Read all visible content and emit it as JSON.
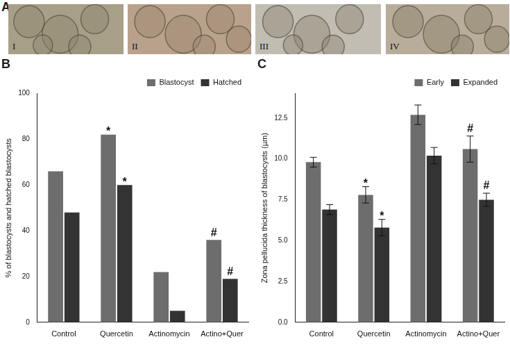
{
  "panel_a": {
    "label": "A",
    "image_labels": [
      "I",
      "II",
      "III",
      "IV"
    ]
  },
  "chart_data": [
    {
      "type": "bar",
      "title": "B",
      "categories": [
        "Control",
        "Quercetin",
        "Actinomycin",
        "Actino+Quer"
      ],
      "series": [
        {
          "name": "Blastocyst",
          "color": "#6d6d6d",
          "values": [
            66,
            82,
            22,
            36
          ]
        },
        {
          "name": "Hatched",
          "color": "#333333",
          "values": [
            48,
            60,
            5,
            19
          ]
        }
      ],
      "y_label": "% of blastocysts and hatched blastocysts",
      "ylim": [
        0,
        100
      ],
      "yticks": [
        0,
        20,
        40,
        60,
        80,
        100
      ],
      "grid": false,
      "legend": "upper right",
      "annotations": [
        {
          "text": "*",
          "category": "Quercetin",
          "series": "Blastocyst"
        },
        {
          "text": "*",
          "category": "Quercetin",
          "series": "Hatched"
        },
        {
          "text": "#",
          "category": "Actino+Quer",
          "series": "Blastocyst"
        },
        {
          "text": "#",
          "category": "Actino+Quer",
          "series": "Hatched"
        }
      ]
    },
    {
      "type": "bar",
      "title": "C",
      "categories": [
        "Control",
        "Quercetin",
        "Actinomycin",
        "Actino+Quer"
      ],
      "series": [
        {
          "name": "Early",
          "color": "#6d6d6d",
          "values": [
            9.8,
            7.8,
            12.7,
            10.6
          ],
          "errors": [
            0.3,
            0.5,
            0.6,
            0.8
          ]
        },
        {
          "name": "Expanded",
          "color": "#333333",
          "values": [
            6.9,
            5.8,
            10.2,
            7.5
          ],
          "errors": [
            0.3,
            0.5,
            0.5,
            0.4
          ]
        }
      ],
      "y_label": "Zona pellucida thickness of blastocysts (µm)",
      "ylim": [
        0,
        14
      ],
      "yticks": [
        {
          "value": 0,
          "label": "0.0"
        },
        2.5,
        {
          "value": 5,
          "label": "5.0"
        },
        7.5,
        {
          "value": 10,
          "label": "10.0"
        },
        12.5
      ],
      "grid": false,
      "legend": "upper right",
      "annotations": [
        {
          "text": "*",
          "category": "Quercetin",
          "series": "Early"
        },
        {
          "text": "*",
          "category": "Quercetin",
          "series": "Expanded"
        },
        {
          "text": "#",
          "category": "Actino+Quer",
          "series": "Early"
        },
        {
          "text": "#",
          "category": "Actino+Quer",
          "series": "Expanded"
        }
      ]
    }
  ]
}
